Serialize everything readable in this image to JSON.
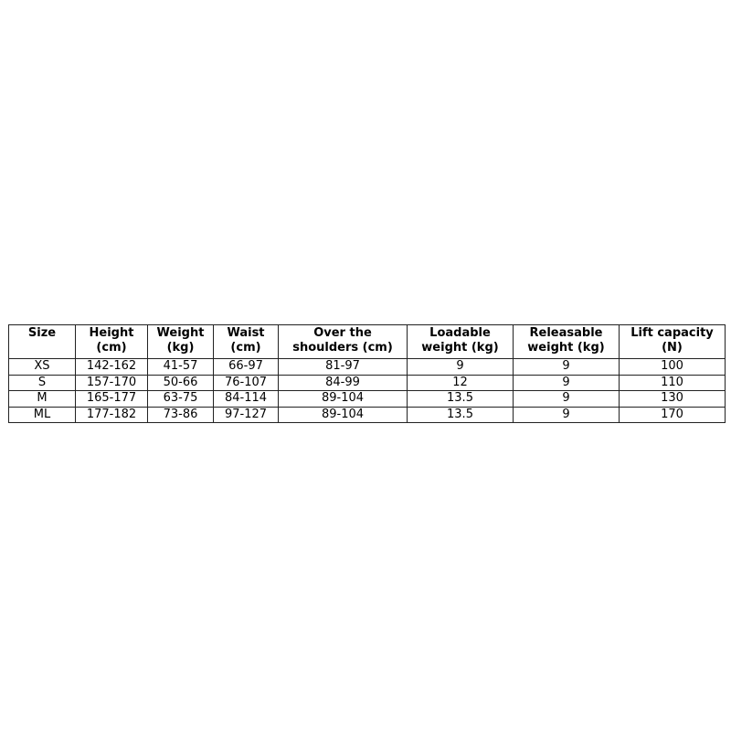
{
  "table": {
    "headers": [
      [
        "Size",
        ""
      ],
      [
        "Height",
        "(cm)"
      ],
      [
        "Weight",
        "(kg)"
      ],
      [
        "Waist",
        "(cm)"
      ],
      [
        "Over the",
        "shoulders (cm)"
      ],
      [
        "Loadable",
        "weight (kg)"
      ],
      [
        "Releasable",
        "weight (kg)"
      ],
      [
        "Lift capacity",
        "(N)"
      ]
    ],
    "rows": [
      [
        "XS",
        "142-162",
        "41-57",
        "66-97",
        "81-97",
        "9",
        "9",
        "100"
      ],
      [
        "S",
        "157-170",
        "50-66",
        "76-107",
        "84-99",
        "12",
        "9",
        "110"
      ],
      [
        "M",
        "165-177",
        "63-75",
        "84-114",
        "89-104",
        "13.5",
        "9",
        "130"
      ],
      [
        "ML",
        "177-182",
        "73-86",
        "97-127",
        "89-104",
        "13.5",
        "9",
        "170"
      ]
    ]
  }
}
